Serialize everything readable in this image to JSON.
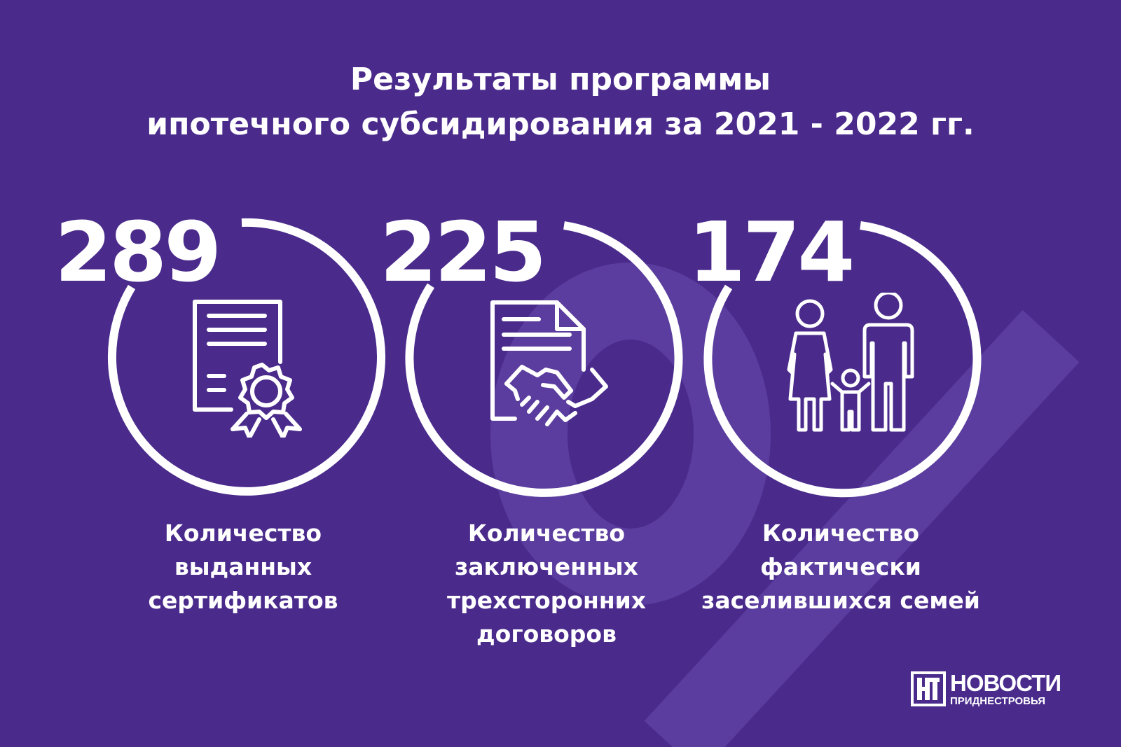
{
  "title": {
    "line1": "Результаты программы",
    "line2": "ипотечного субсидирования за 2021 - 2022 гг."
  },
  "stats": [
    {
      "value": "289",
      "icon": "certificate-icon",
      "caption": [
        "Количество",
        "выданных",
        "сертификатов"
      ]
    },
    {
      "value": "225",
      "icon": "contract-handshake-icon",
      "caption": [
        "Количество",
        "заключенных",
        "трехсторонних",
        "договоров"
      ]
    },
    {
      "value": "174",
      "icon": "family-icon",
      "caption": [
        "Количество",
        "фактически",
        "заселившихся семей"
      ]
    }
  ],
  "logo": {
    "main": "НОВОСТИ",
    "sub": "ПРИДНЕСТРОВЬЯ",
    "icon": "news-logo-icon"
  },
  "colors": {
    "background": "#4a2b8c",
    "foreground": "#ffffff"
  }
}
